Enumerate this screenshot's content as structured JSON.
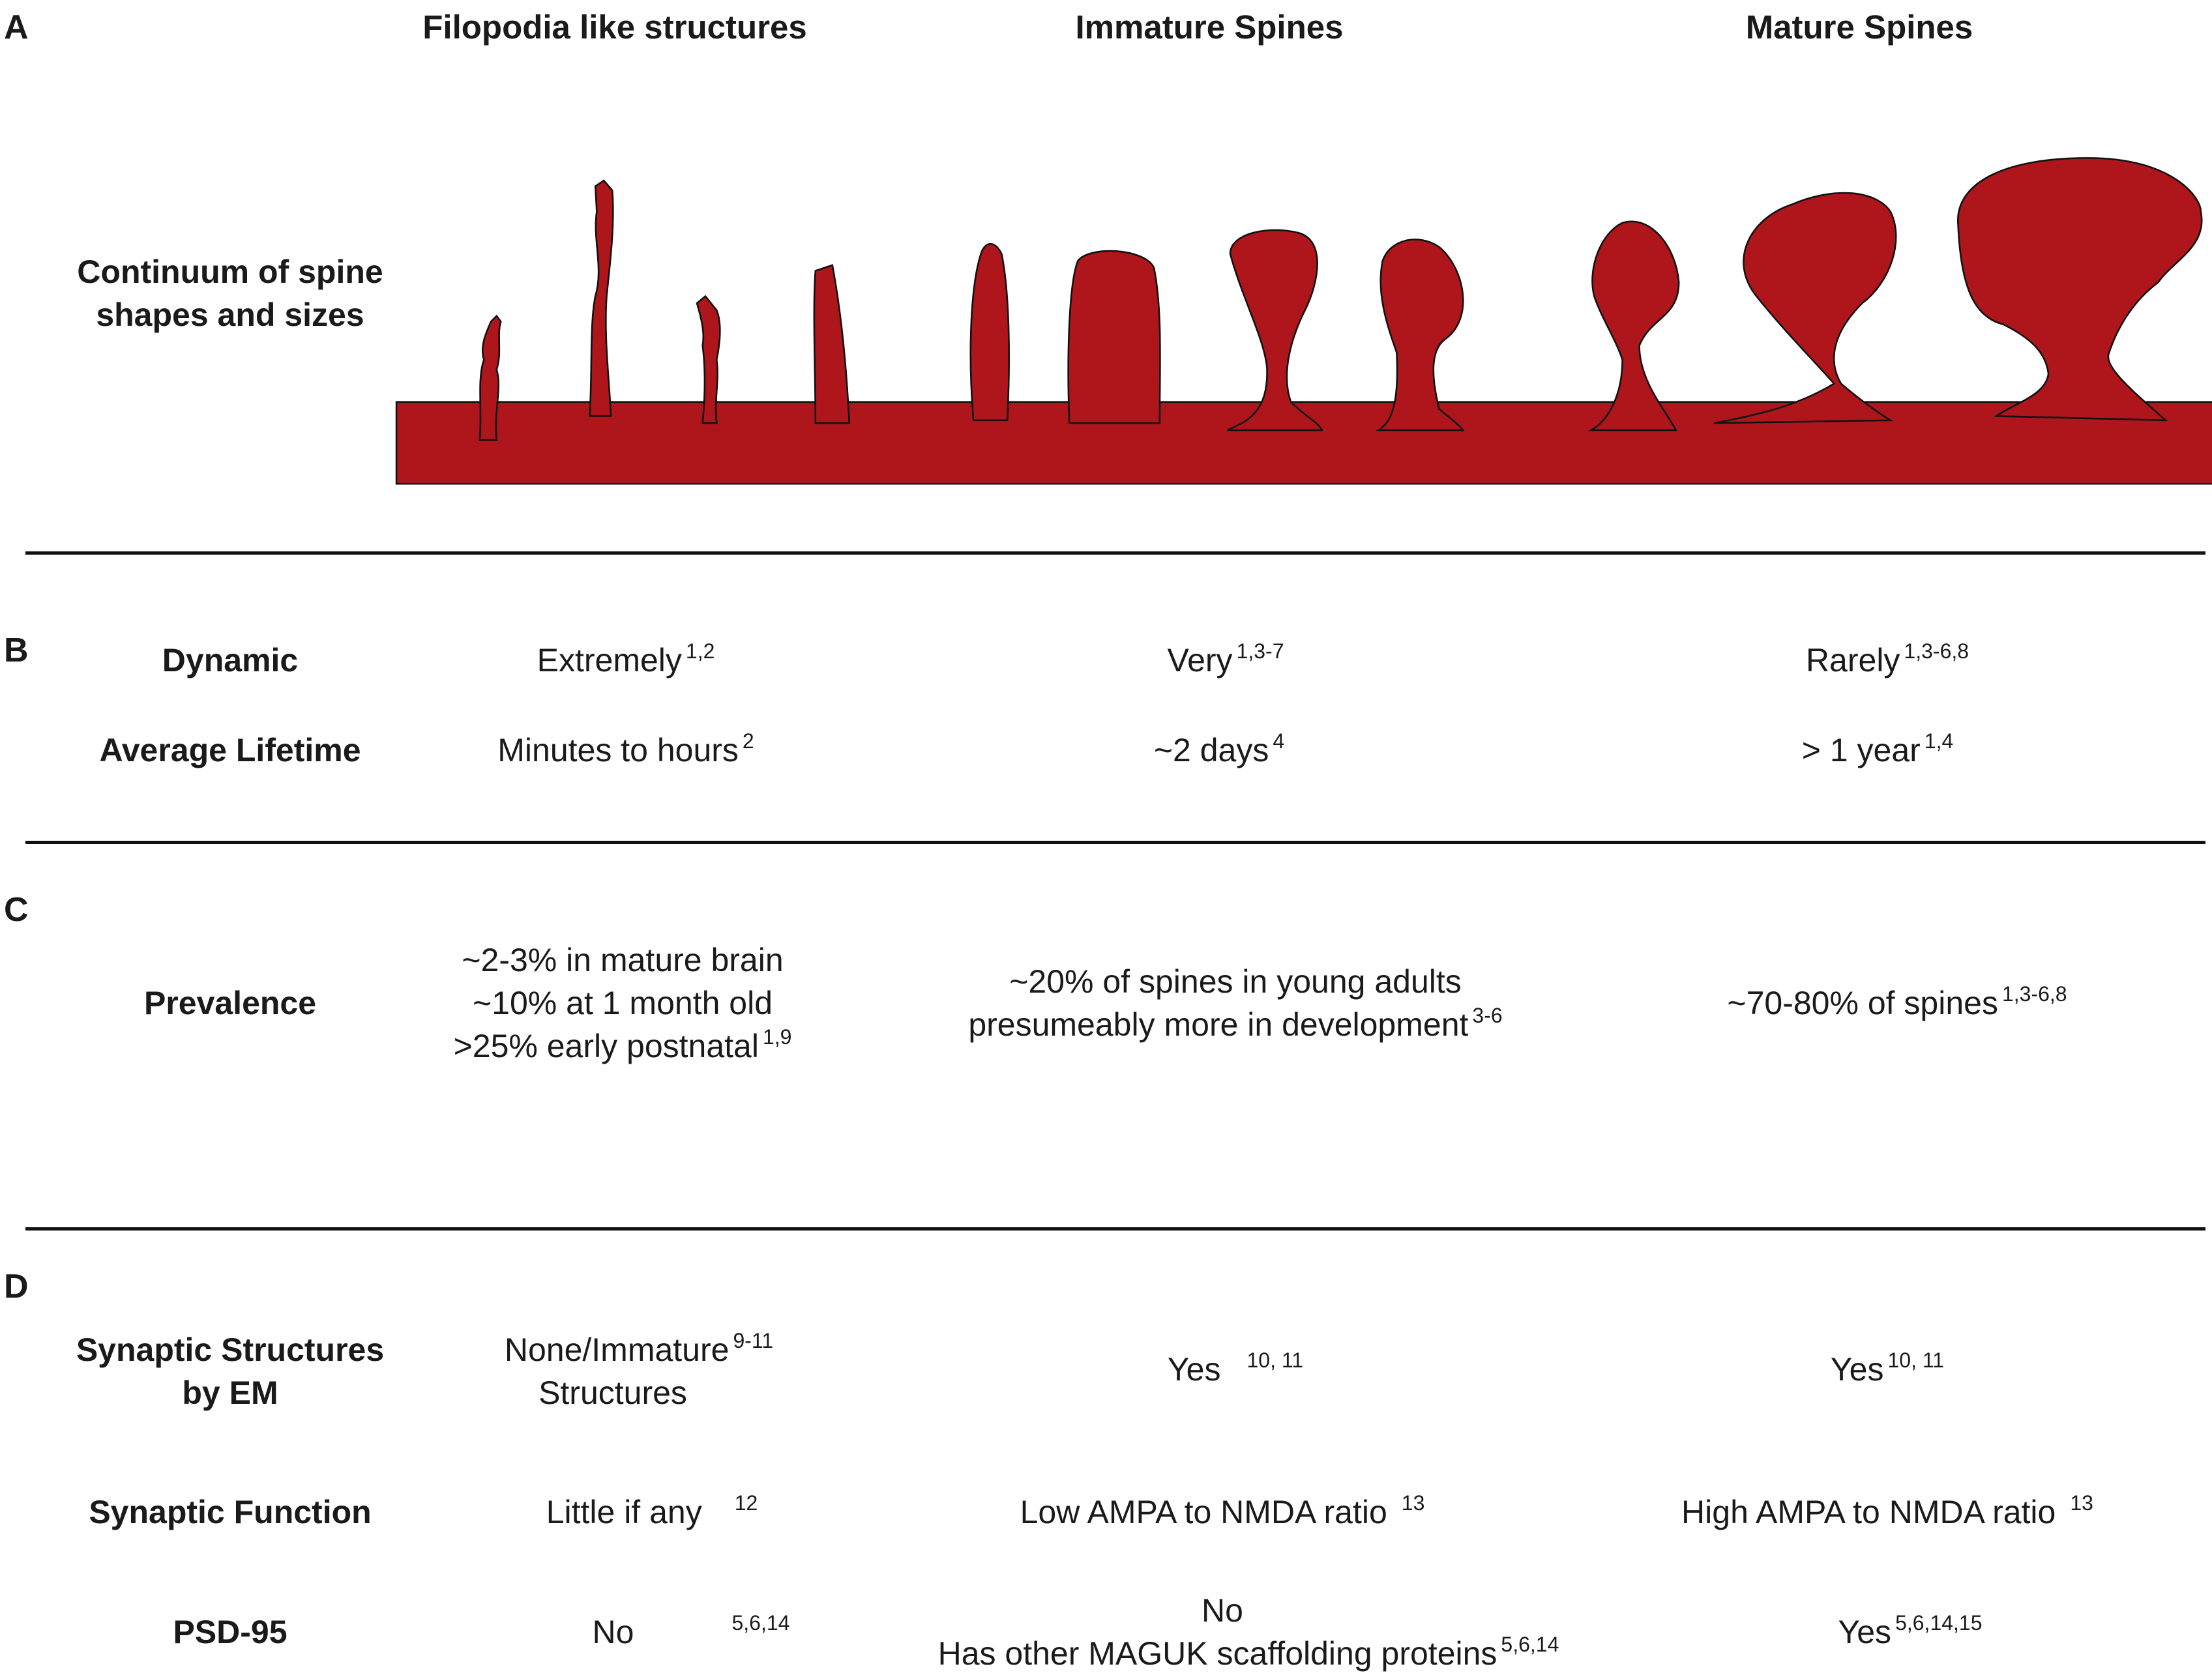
{
  "panels": [
    "A",
    "B",
    "C",
    "D"
  ],
  "columns": [
    "Filopodia like structures",
    "Immature Spines",
    "Mature Spines"
  ],
  "colors": {
    "spine_fill": "#AE161C",
    "outline": "#111111"
  },
  "panel_a": {
    "row_label_1": "Continuum of spine",
    "row_label_2": "shapes and sizes"
  },
  "rows": {
    "dynamic": {
      "label": "Dynamic",
      "cells": [
        {
          "text": "Extremely",
          "ref": "1,2"
        },
        {
          "text": "Very",
          "ref": "1,3-7"
        },
        {
          "text": "Rarely",
          "ref": "1,3-6,8"
        }
      ]
    },
    "lifetime": {
      "label": "Average Lifetime",
      "cells": [
        {
          "text": "Minutes to hours",
          "ref": "2"
        },
        {
          "text": "~2 days",
          "ref": "4"
        },
        {
          "text": "> 1 year",
          "ref": "1,4"
        }
      ]
    },
    "prevalence": {
      "label": "Prevalence",
      "filo": [
        "~2-3% in mature brain",
        "~10% at 1 month old",
        ">25% early postnatal"
      ],
      "filo_ref": "1,9",
      "immature": [
        "~20% of spines in young adults",
        "presumeably more in development"
      ],
      "immature_ref": "3-6",
      "mature": "~70-80% of spines",
      "mature_ref": "1,3-6,8"
    },
    "structures": {
      "label_1": "Synaptic Structures",
      "label_2": "by EM",
      "filo": [
        "None/Immature",
        "Structures"
      ],
      "filo_ref": "9-11",
      "immature": "Yes",
      "immature_ref": "10, 11",
      "mature": "Yes",
      "mature_ref": "10, 11"
    },
    "function": {
      "label": "Synaptic Function",
      "cells": [
        {
          "text": "Little if any",
          "ref": "12"
        },
        {
          "text": "Low AMPA to NMDA ratio",
          "ref": "13"
        },
        {
          "text": "High AMPA to NMDA ratio",
          "ref": "13"
        }
      ]
    },
    "psd95": {
      "label": "PSD-95",
      "filo": "No",
      "filo_ref": "5,6,14",
      "immature": [
        "No",
        "Has other MAGUK scaffolding proteins"
      ],
      "immature_ref": "5,6,14",
      "mature": "Yes",
      "mature_ref": "5,6,14,15"
    }
  }
}
